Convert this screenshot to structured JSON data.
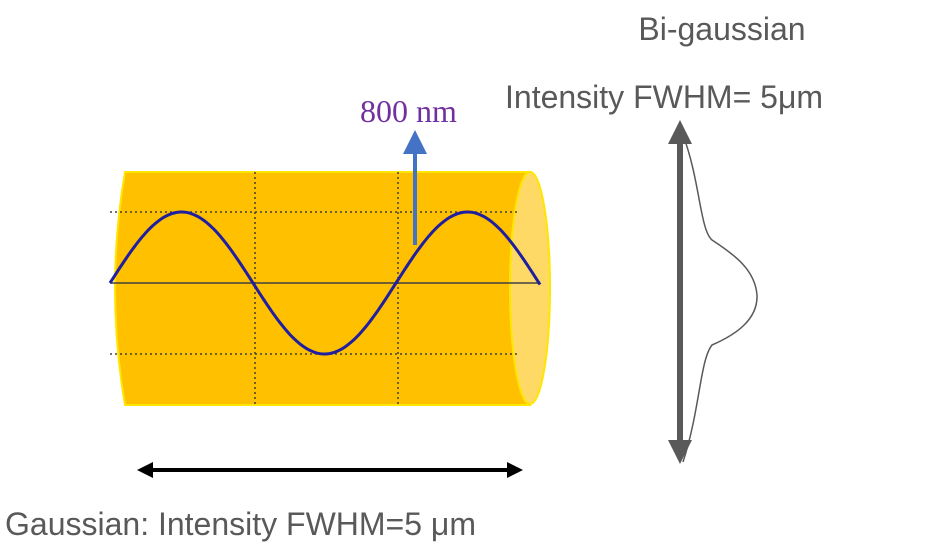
{
  "labels": {
    "top_title": "Bi-gaussian",
    "top_subtitle": "Intensity FWHM= 5μm",
    "wavelength": "800 nm",
    "bottom_caption": "Gaussian: Intensity FWHM=5 μm"
  }
}
